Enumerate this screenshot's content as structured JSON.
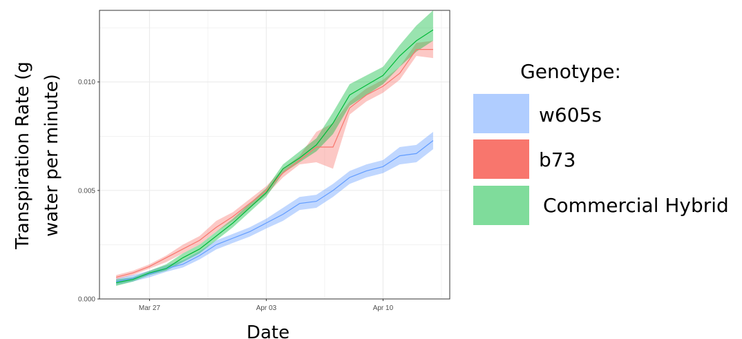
{
  "chart_data": {
    "type": "line",
    "title": "",
    "xlabel": "Date",
    "ylabel": "Transpiration Rate (g water per minute)",
    "ylabel_lines": [
      "Transpiration Rate (g",
      "water per minute)"
    ],
    "ylim": [
      0,
      0.0133
    ],
    "yticks": [
      0.0,
      0.005,
      0.01
    ],
    "ytick_labels": [
      "0.000",
      "0.005",
      "0.010"
    ],
    "xlim": [
      "2023-03-24",
      "2023-04-14"
    ],
    "xticks": [
      "2023-03-27",
      "2023-04-03",
      "2023-04-10"
    ],
    "xtick_labels": [
      "Mar 27",
      "Apr 03",
      "Apr 10"
    ],
    "grid": true,
    "legend": {
      "title": "Genotype:",
      "position": "right",
      "entries": [
        "w605s",
        "b73",
        "Commercial Hybrid"
      ]
    },
    "x": [
      "2023-03-25",
      "2023-03-26",
      "2023-03-27",
      "2023-03-28",
      "2023-03-29",
      "2023-03-30",
      "2023-03-31",
      "2023-04-01",
      "2023-04-02",
      "2023-04-03",
      "2023-04-04",
      "2023-04-05",
      "2023-04-06",
      "2023-04-07",
      "2023-04-08",
      "2023-04-09",
      "2023-04-10",
      "2023-04-11",
      "2023-04-12",
      "2023-04-13"
    ],
    "series": [
      {
        "name": "w605s",
        "color": "#619CFF",
        "values": [
          0.0008,
          0.00095,
          0.00115,
          0.0014,
          0.0016,
          0.002,
          0.0025,
          0.0028,
          0.0031,
          0.0035,
          0.0039,
          0.0044,
          0.0045,
          0.005,
          0.0056,
          0.0059,
          0.0061,
          0.0066,
          0.0067,
          0.0073
        ],
        "lower": [
          0.00065,
          0.0008,
          0.001,
          0.00125,
          0.00145,
          0.00182,
          0.00228,
          0.00258,
          0.00287,
          0.00325,
          0.0036,
          0.0041,
          0.0042,
          0.0047,
          0.0053,
          0.0056,
          0.0058,
          0.0062,
          0.0063,
          0.0069
        ],
        "upper": [
          0.00095,
          0.0011,
          0.0013,
          0.00155,
          0.00178,
          0.0022,
          0.0027,
          0.003,
          0.0033,
          0.0037,
          0.0042,
          0.0047,
          0.0048,
          0.0053,
          0.0059,
          0.0062,
          0.0064,
          0.007,
          0.0071,
          0.0077
        ]
      },
      {
        "name": "b73",
        "color": "#F8766D",
        "values": [
          0.001,
          0.0012,
          0.0015,
          0.0019,
          0.0023,
          0.0027,
          0.0033,
          0.0038,
          0.0044,
          0.005,
          0.0058,
          0.0064,
          0.007,
          0.007,
          0.0088,
          0.0094,
          0.0098,
          0.0104,
          0.0115,
          0.0115
        ],
        "lower": [
          0.0009,
          0.0011,
          0.0014,
          0.0017,
          0.0021,
          0.0025,
          0.0031,
          0.0036,
          0.0042,
          0.0048,
          0.0056,
          0.0062,
          0.0063,
          0.006,
          0.0085,
          0.0091,
          0.0095,
          0.0101,
          0.0112,
          0.0111
        ],
        "upper": [
          0.0011,
          0.0013,
          0.0016,
          0.002,
          0.0025,
          0.0029,
          0.0036,
          0.004,
          0.0046,
          0.0052,
          0.006,
          0.0066,
          0.0077,
          0.0081,
          0.0091,
          0.0097,
          0.0101,
          0.0107,
          0.0118,
          0.0119
        ]
      },
      {
        "name": "Commercial Hybrid",
        "color": "#00BA38",
        "values": [
          0.00075,
          0.0009,
          0.0012,
          0.0014,
          0.0019,
          0.0023,
          0.0029,
          0.0035,
          0.0042,
          0.0049,
          0.006,
          0.0065,
          0.0071,
          0.0081,
          0.0094,
          0.00985,
          0.0103,
          0.0112,
          0.0119,
          0.0124
        ],
        "lower": [
          0.0006,
          0.0008,
          0.0011,
          0.0013,
          0.0017,
          0.0021,
          0.0027,
          0.0033,
          0.004,
          0.0047,
          0.0058,
          0.0063,
          0.0068,
          0.0076,
          0.0089,
          0.0094,
          0.0099,
          0.0107,
          0.0114,
          0.0119
        ],
        "upper": [
          0.0009,
          0.001,
          0.0013,
          0.0016,
          0.0021,
          0.0025,
          0.0031,
          0.0037,
          0.0044,
          0.0051,
          0.0062,
          0.0068,
          0.0074,
          0.0086,
          0.0099,
          0.0103,
          0.0107,
          0.0117,
          0.0126,
          0.0133
        ]
      }
    ]
  }
}
